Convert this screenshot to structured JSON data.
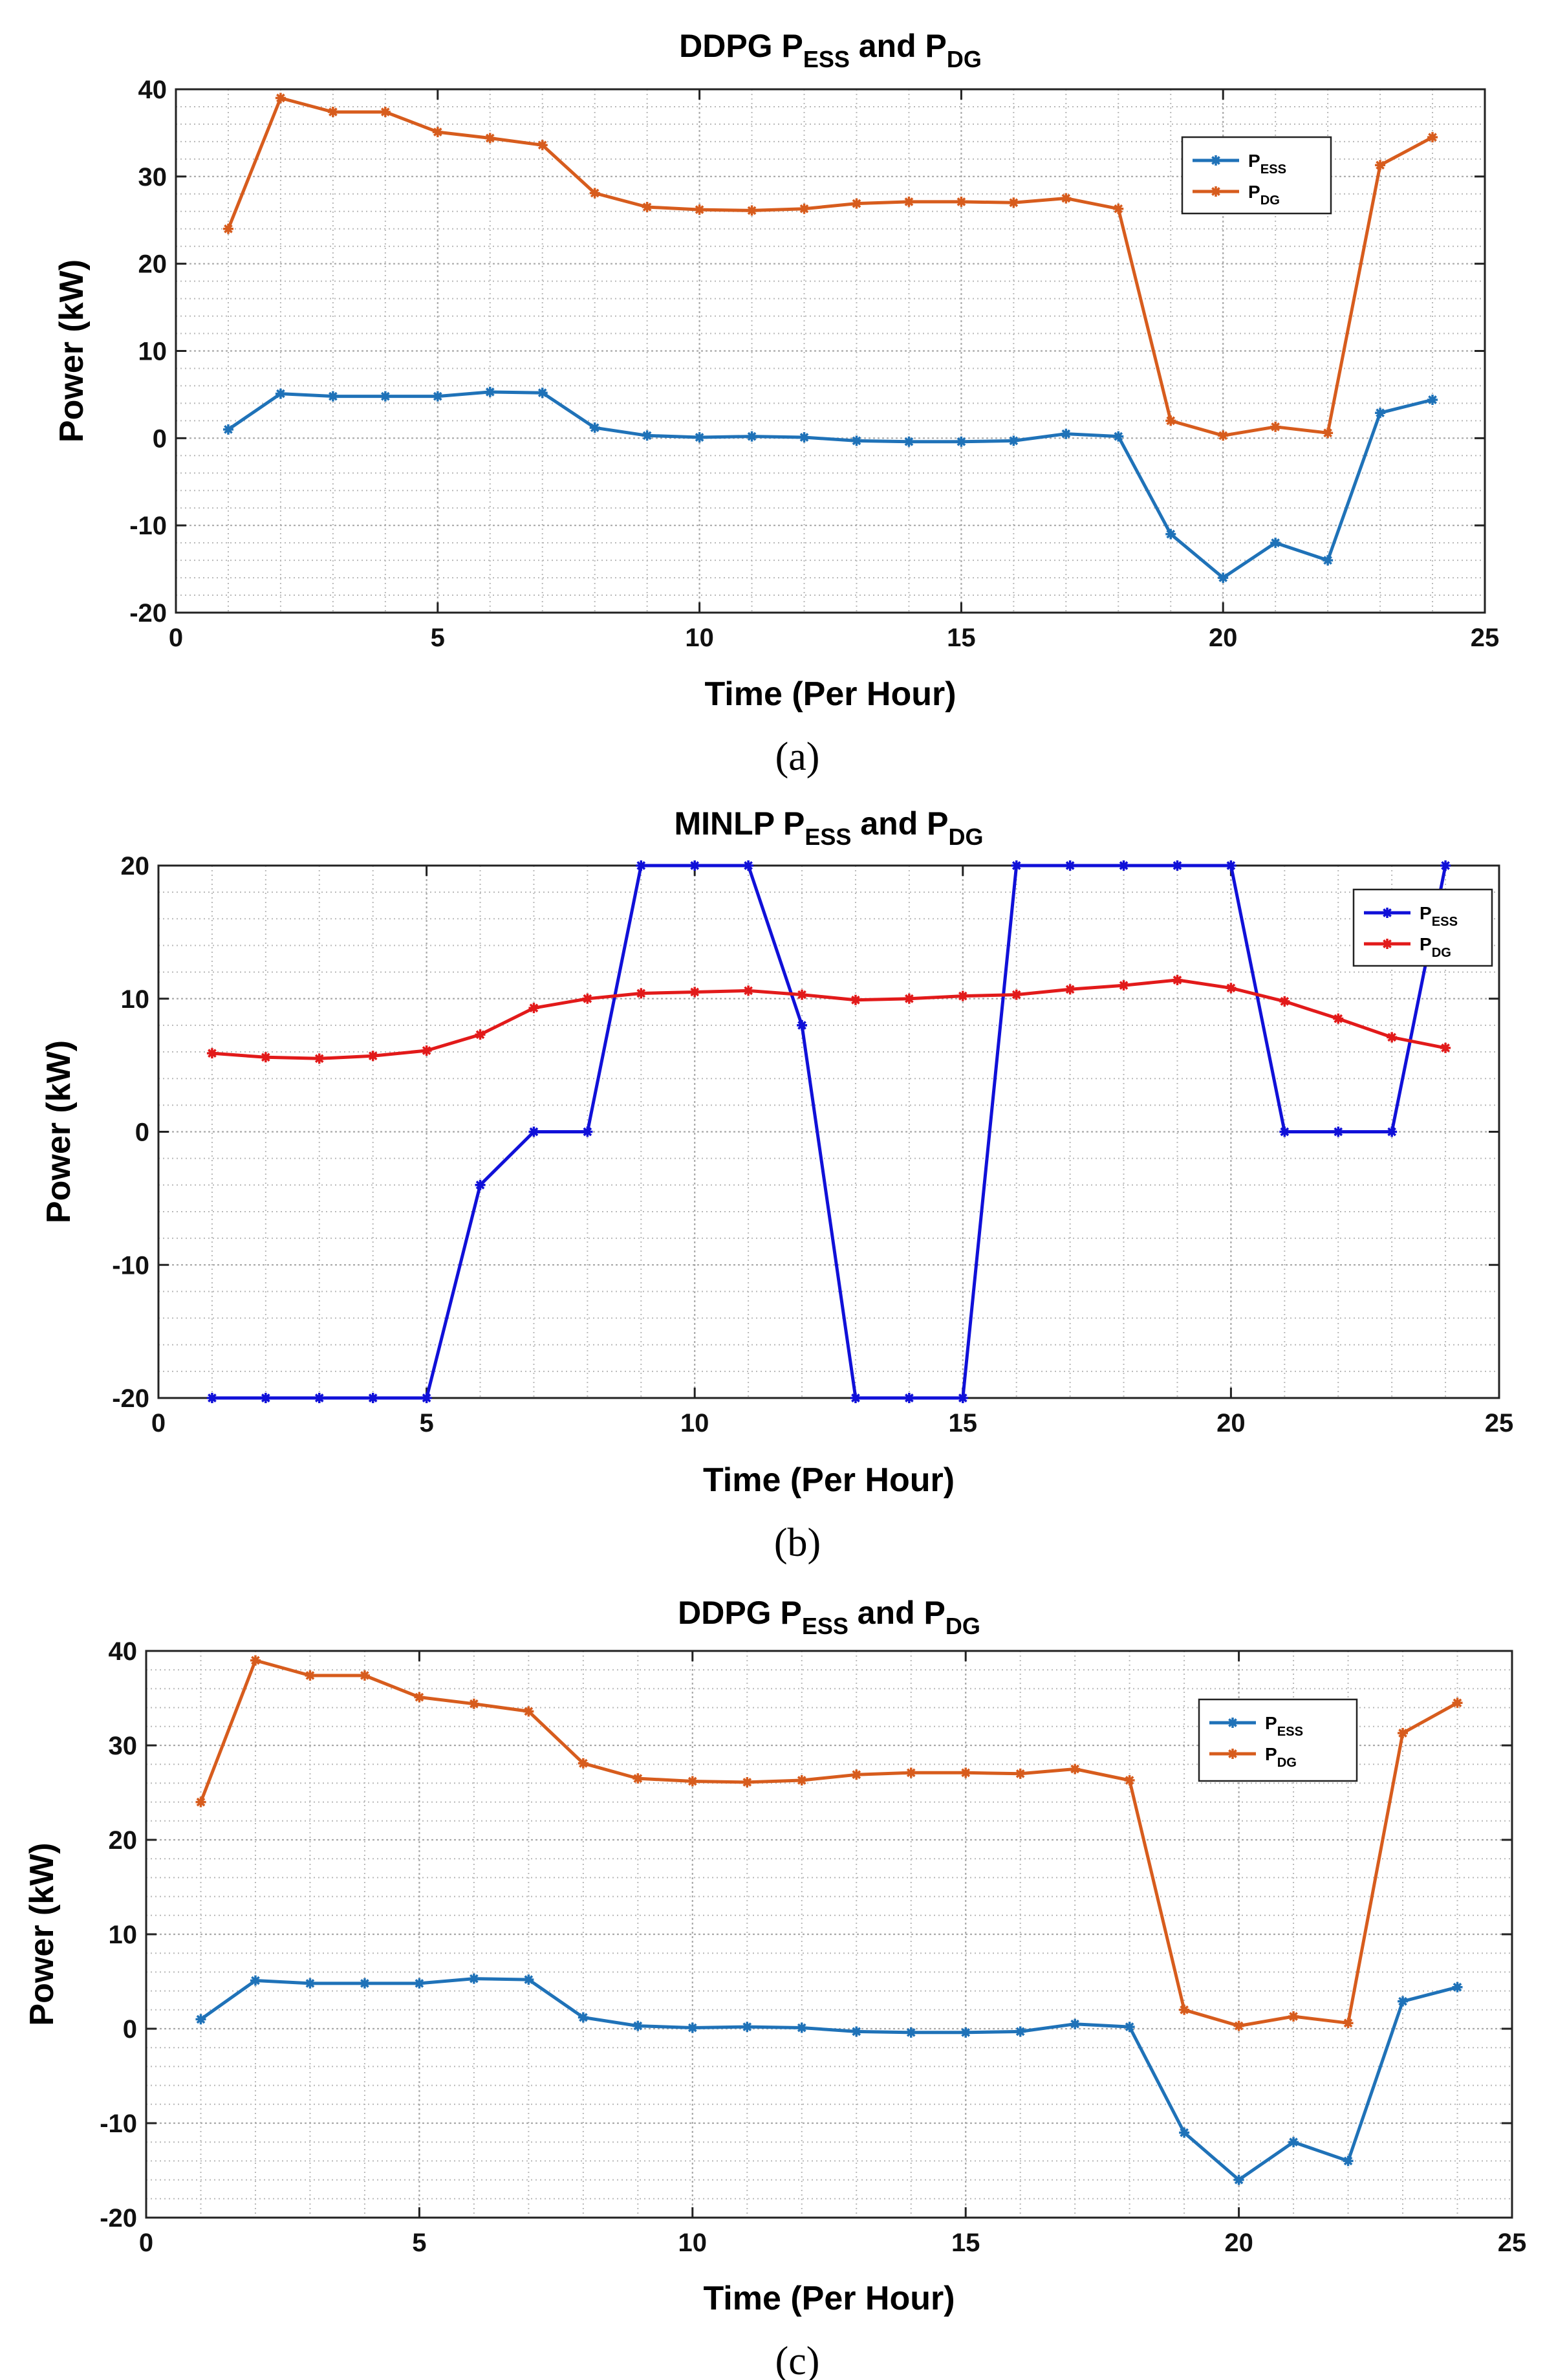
{
  "chart_data": [
    {
      "type": "line",
      "title": "DDPG P_ESS and P_DG",
      "title_main": "DDPG P",
      "title_sub1": "ESS",
      "title_mid": " and P",
      "title_sub2": "DG",
      "xlabel": "Time (Per Hour)",
      "ylabel": "Power (kW)",
      "caption": "(a)",
      "xlim": [
        0,
        25
      ],
      "ylim": [
        -20,
        40
      ],
      "xticks": [
        0,
        5,
        10,
        15,
        20,
        25
      ],
      "yticks": [
        -20,
        -10,
        0,
        10,
        20,
        30,
        40
      ],
      "grid": true,
      "legend_position": "upper-right",
      "x": [
        1,
        2,
        3,
        4,
        5,
        6,
        7,
        8,
        9,
        10,
        11,
        12,
        13,
        14,
        15,
        16,
        17,
        18,
        19,
        20,
        21,
        22,
        23,
        24
      ],
      "series": [
        {
          "name": "P_ESS",
          "label": "P",
          "sub": "ESS",
          "color": "#1f72b8",
          "values": [
            1.0,
            5.1,
            4.8,
            4.8,
            4.8,
            5.3,
            5.2,
            1.2,
            0.3,
            0.1,
            0.2,
            0.1,
            -0.3,
            -0.4,
            -0.4,
            -0.3,
            0.5,
            0.2,
            -11.0,
            -16.0,
            -12.0,
            -14.0,
            2.9,
            4.4
          ]
        },
        {
          "name": "P_DG",
          "label": "P",
          "sub": "DG",
          "color": "#d75c1d",
          "values": [
            24.0,
            39.0,
            37.4,
            37.4,
            35.1,
            34.4,
            33.6,
            28.1,
            26.5,
            26.2,
            26.1,
            26.3,
            26.9,
            27.1,
            27.1,
            27.0,
            27.5,
            26.3,
            2.0,
            0.3,
            1.3,
            0.6,
            31.3,
            34.5
          ]
        }
      ]
    },
    {
      "type": "line",
      "title": "MINLP P_ESS and P_DG",
      "title_main": "MINLP P",
      "title_sub1": "ESS",
      "title_mid": " and P",
      "title_sub2": "DG",
      "xlabel": "Time (Per Hour)",
      "ylabel": "Power (kW)",
      "caption": "(b)",
      "xlim": [
        0,
        25
      ],
      "ylim": [
        -20,
        20
      ],
      "xticks": [
        0,
        5,
        10,
        15,
        20,
        25
      ],
      "yticks": [
        -20,
        -10,
        0,
        10,
        20
      ],
      "grid": true,
      "legend_position": "upper-right",
      "x": [
        1,
        2,
        3,
        4,
        5,
        6,
        7,
        8,
        9,
        10,
        11,
        12,
        13,
        14,
        15,
        16,
        17,
        18,
        19,
        20,
        21,
        22,
        23,
        24
      ],
      "series": [
        {
          "name": "P_ESS",
          "label": "P",
          "sub": "ESS",
          "color": "#1010d8",
          "values": [
            -20,
            -20,
            -20,
            -20,
            -20,
            -4,
            0,
            0,
            20,
            20,
            20,
            8,
            -20,
            -20,
            -20,
            20,
            20,
            20,
            20,
            20,
            0,
            0,
            0,
            20
          ]
        },
        {
          "name": "P_DG",
          "label": "P",
          "sub": "DG",
          "color": "#e21a1a",
          "values": [
            5.9,
            5.6,
            5.5,
            5.7,
            6.1,
            7.3,
            9.3,
            10.0,
            10.4,
            10.5,
            10.6,
            10.3,
            9.9,
            10.0,
            10.2,
            10.3,
            10.7,
            11.0,
            11.4,
            10.8,
            9.8,
            8.5,
            7.1,
            6.3
          ]
        }
      ]
    },
    {
      "type": "line",
      "title": "DDPG P_ESS and P_DG",
      "title_main": "DDPG P",
      "title_sub1": "ESS",
      "title_mid": " and P",
      "title_sub2": "DG",
      "xlabel": "Time (Per Hour)",
      "ylabel": "Power (kW)",
      "caption": "(c)",
      "xlim": [
        0,
        25
      ],
      "ylim": [
        -20,
        40
      ],
      "xticks": [
        0,
        5,
        10,
        15,
        20,
        25
      ],
      "yticks": [
        -20,
        -10,
        0,
        10,
        20,
        30,
        40
      ],
      "grid": true,
      "legend_position": "upper-right",
      "x": [
        1,
        2,
        3,
        4,
        5,
        6,
        7,
        8,
        9,
        10,
        11,
        12,
        13,
        14,
        15,
        16,
        17,
        18,
        19,
        20,
        21,
        22,
        23,
        24
      ],
      "series": [
        {
          "name": "P_ESS",
          "label": "P",
          "sub": "ESS",
          "color": "#1f72b8",
          "values": [
            1.0,
            5.1,
            4.8,
            4.8,
            4.8,
            5.3,
            5.2,
            1.2,
            0.3,
            0.1,
            0.2,
            0.1,
            -0.3,
            -0.4,
            -0.4,
            -0.3,
            0.5,
            0.2,
            -11.0,
            -16.0,
            -12.0,
            -14.0,
            2.9,
            4.4
          ]
        },
        {
          "name": "P_DG",
          "label": "P",
          "sub": "DG",
          "color": "#d75c1d",
          "values": [
            24.0,
            39.0,
            37.4,
            37.4,
            35.1,
            34.4,
            33.6,
            28.1,
            26.5,
            26.2,
            26.1,
            26.3,
            26.9,
            27.1,
            27.1,
            27.0,
            27.5,
            26.3,
            2.0,
            0.3,
            1.3,
            0.6,
            31.3,
            34.5
          ]
        }
      ]
    }
  ]
}
